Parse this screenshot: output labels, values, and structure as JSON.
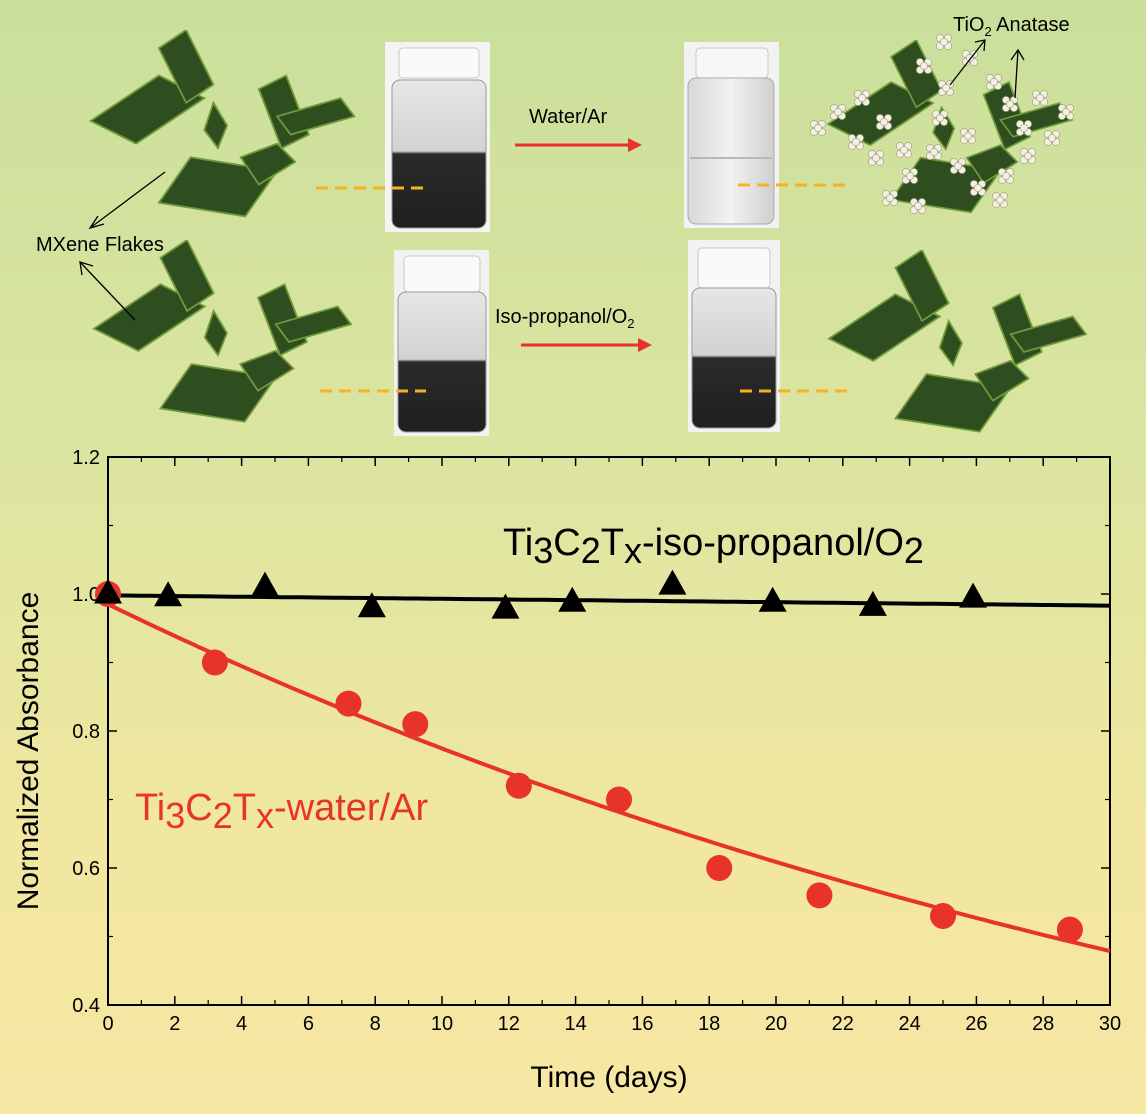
{
  "schematic": {
    "mxene_label": "MXene Flakes",
    "tio2_label": "TiO",
    "tio2_sub": "2",
    "tio2_suffix": " Anatase",
    "arrow_top_label": "Water/Ar",
    "arrow_bottom_label": "Iso-propanol/O",
    "arrow_bottom_sub": "2",
    "colors": {
      "flake": "#2f4e1f",
      "flake_edge": "#6f9a3a",
      "arrow": "#e8332a",
      "dash": "#f5b324",
      "particle": "#f3efe2"
    }
  },
  "chart_data": {
    "type": "scatter",
    "xlabel": "Time (days)",
    "ylabel": "Normalized Absorbance",
    "xlim": [
      0,
      30
    ],
    "ylim": [
      0.4,
      1.2
    ],
    "xticks": [
      0,
      2,
      4,
      6,
      8,
      10,
      12,
      14,
      16,
      18,
      20,
      22,
      24,
      26,
      28,
      30
    ],
    "yticks": [
      0.4,
      0.6,
      0.8,
      1.0,
      1.2
    ],
    "xtick_labels": [
      "0",
      "2",
      "4",
      "6",
      "8",
      "10",
      "12",
      "14",
      "16",
      "18",
      "20",
      "22",
      "24",
      "26",
      "28",
      "30"
    ],
    "ytick_labels": [
      "0.4",
      "0.6",
      "0.8",
      "1.0",
      "1.2"
    ],
    "grid": false,
    "series": [
      {
        "name_parts": [
          {
            "t": "Ti",
            "s": false
          },
          {
            "t": "3",
            "s": true
          },
          {
            "t": "C",
            "s": false
          },
          {
            "t": "2",
            "s": true
          },
          {
            "t": "T",
            "s": false
          },
          {
            "t": "x",
            "s": true
          },
          {
            "t": "-iso-propanol/O",
            "s": false
          },
          {
            "t": "2",
            "s": true
          }
        ],
        "marker": "triangle",
        "color": "#000000",
        "x": [
          0,
          1.8,
          4.7,
          7.9,
          11.9,
          13.9,
          16.9,
          19.9,
          22.9,
          25.9
        ],
        "y": [
          1.0,
          0.996,
          1.01,
          0.98,
          0.978,
          0.988,
          1.013,
          0.988,
          0.982,
          0.994
        ],
        "fit": {
          "kind": "linear",
          "a": 0.998,
          "b": -0.0005
        }
      },
      {
        "name_parts": [
          {
            "t": "Ti",
            "s": false
          },
          {
            "t": "3",
            "s": true
          },
          {
            "t": "C",
            "s": false
          },
          {
            "t": "2",
            "s": true
          },
          {
            "t": "T",
            "s": false
          },
          {
            "t": "x",
            "s": true
          },
          {
            "t": "-water/Ar",
            "s": false
          }
        ],
        "marker": "circle",
        "color": "#e8332a",
        "x": [
          0,
          3.2,
          7.2,
          9.2,
          12.3,
          15.3,
          18.3,
          21.3,
          25.0,
          28.8
        ],
        "y": [
          1.0,
          0.9,
          0.84,
          0.81,
          0.72,
          0.7,
          0.6,
          0.56,
          0.53,
          0.51
        ],
        "fit": {
          "kind": "exp",
          "a": 0.985,
          "k": 0.02405
        }
      }
    ]
  }
}
